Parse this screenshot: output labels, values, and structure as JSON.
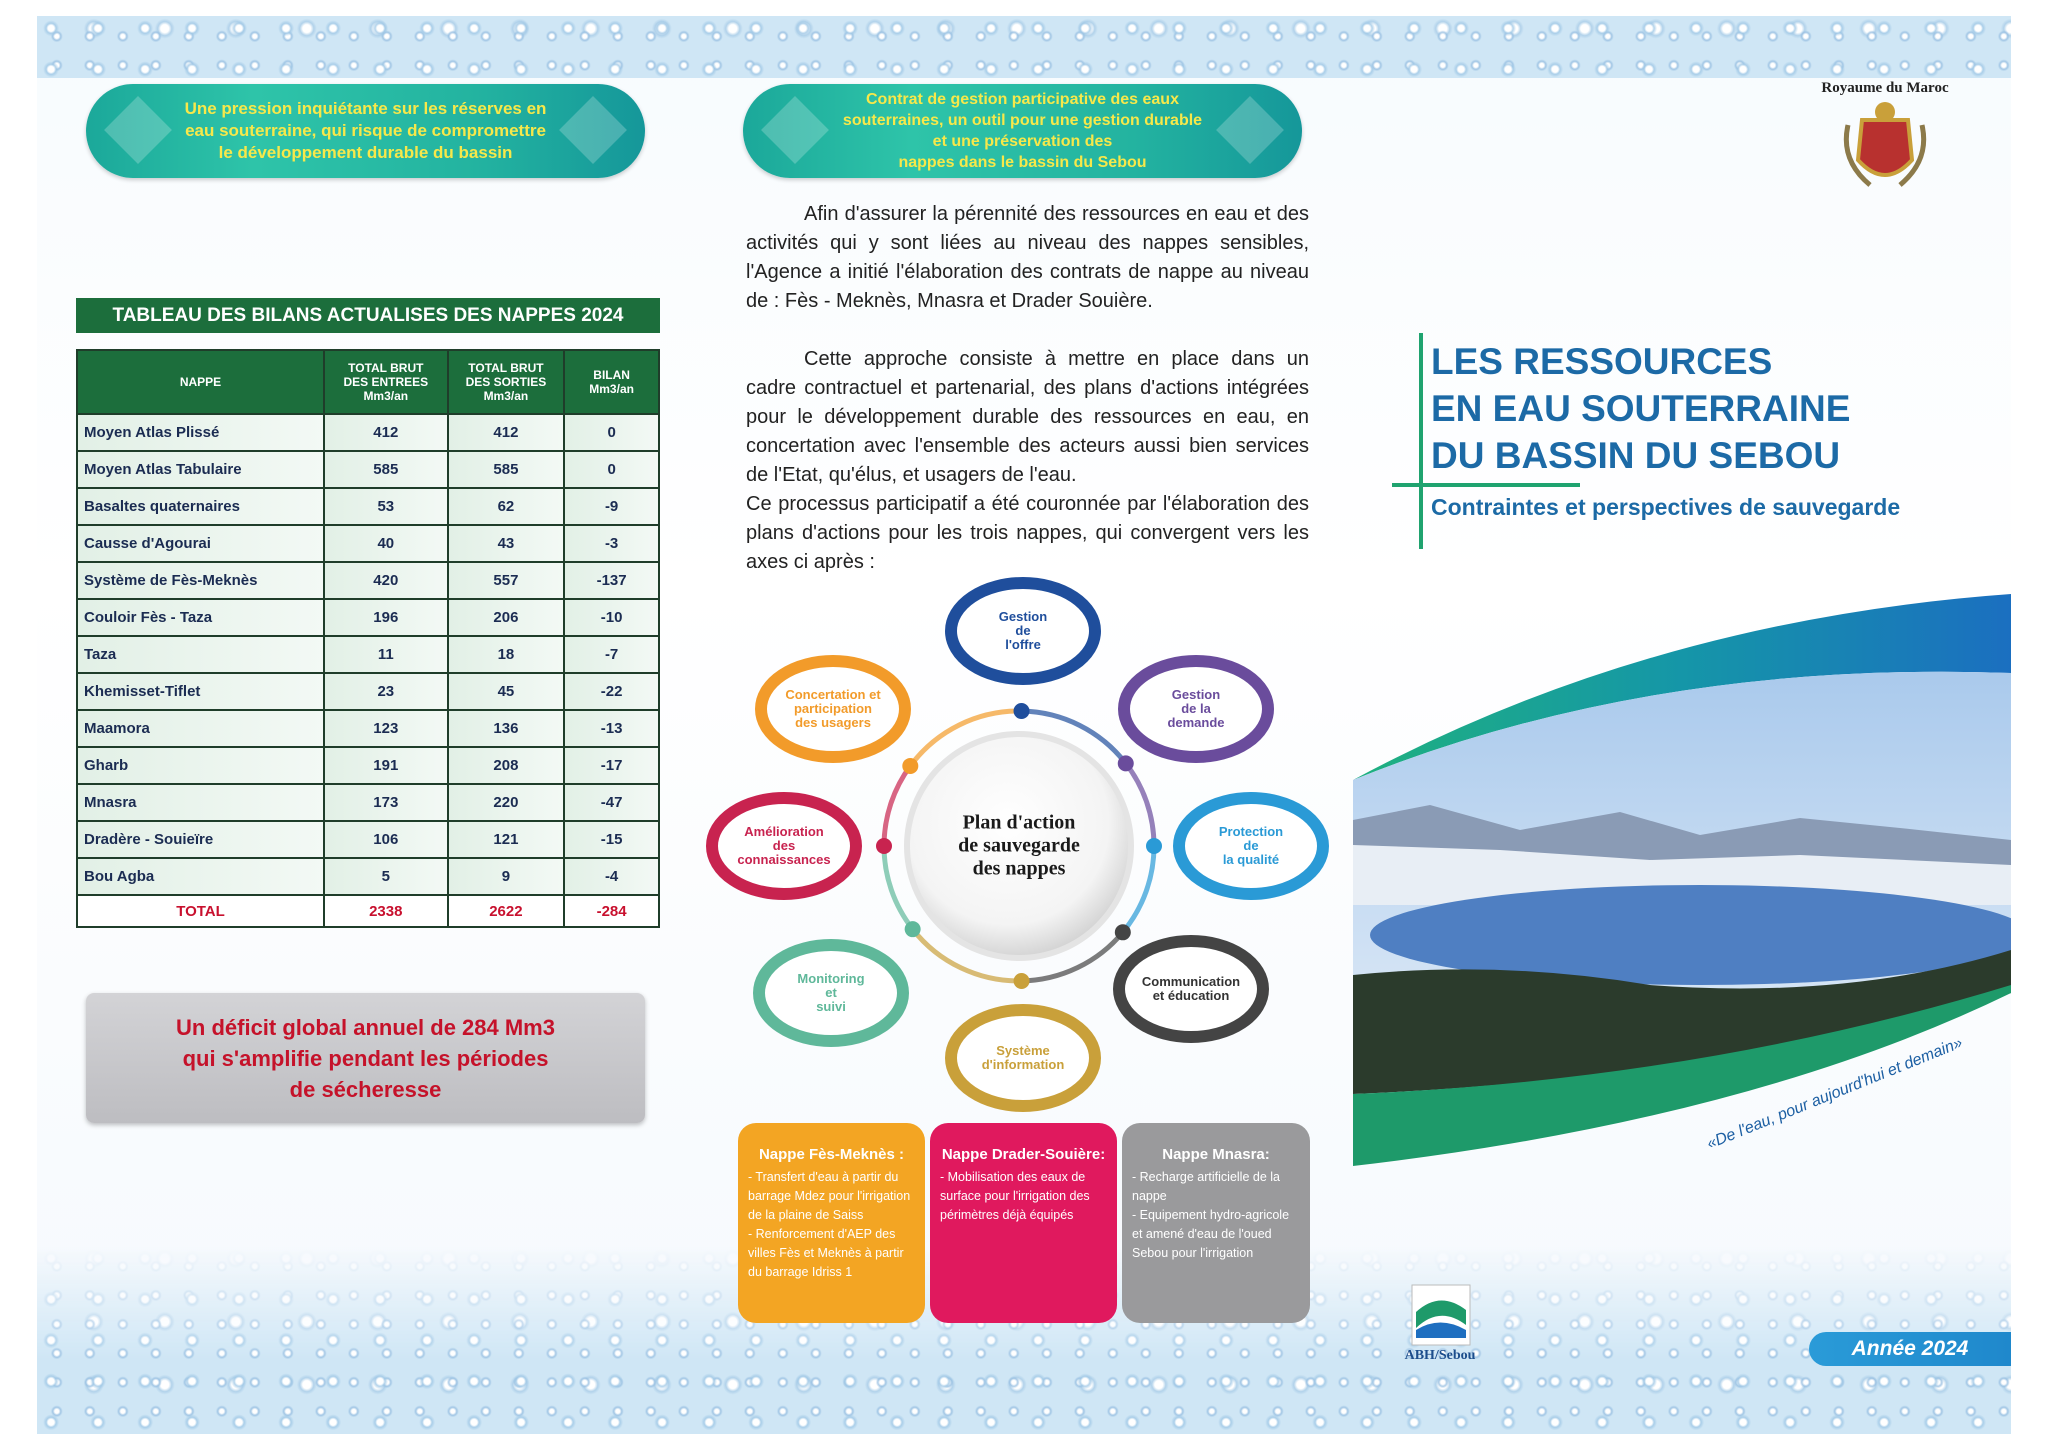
{
  "left_panel": {
    "banner": "Une pression inquiétante sur les réserves en\neau souterraine, qui risque de compromettre\nle développement durable du bassin",
    "table": {
      "title": "TABLEAU DES BILANS ACTUALISES DES NAPPES 2024",
      "headers": [
        "NAPPE",
        "TOTAL BRUT\nDES ENTREES\nMm3/an",
        "TOTAL BRUT\nDES SORTIES\nMm3/an",
        "BILAN\nMm3/an"
      ],
      "rows": [
        [
          "Moyen Atlas Plissé",
          412,
          412,
          0
        ],
        [
          "Moyen Atlas Tabulaire",
          585,
          585,
          0
        ],
        [
          "Basaltes quaternaires",
          53,
          62,
          -9
        ],
        [
          "Causse d'Agourai",
          40,
          43,
          -3
        ],
        [
          "Système de Fès-Meknès",
          420,
          557,
          -137
        ],
        [
          "Couloir Fès - Taza",
          196,
          206,
          -10
        ],
        [
          "Taza",
          11,
          18,
          -7
        ],
        [
          "Khemisset-Tiflet",
          23,
          45,
          -22
        ],
        [
          "Maamora",
          123,
          136,
          -13
        ],
        [
          "Gharb",
          191,
          208,
          -17
        ],
        [
          "Mnasra",
          173,
          220,
          -47
        ],
        [
          "Dradère - Souieïre",
          106,
          121,
          -15
        ],
        [
          "Bou Agba",
          5,
          9,
          -4
        ]
      ],
      "total": [
        "TOTAL",
        2338,
        2622,
        -284
      ]
    },
    "deficit": "Un déficit  global annuel de 284 Mm3\nqui s'amplifie pendant les périodes\nde sécheresse"
  },
  "middle_panel": {
    "banner": "Contrat de gestion participative des eaux\nsouterraines, un outil pour une gestion durable\net une préservation des\nnappes dans le bassin du Sebou",
    "paragraphs": [
      "Afin d'assurer la pérennité des ressources en eau et des activités qui y sont liées au niveau des nappes sensibles, l'Agence a initié l'élaboration des contrats de  nappe au niveau de : Fès - Meknès, Mnasra et Drader Souière.",
      "Cette approche consiste à mettre en place dans un cadre contractuel et partenarial, des plans d'actions intégrées pour le développement durable des ressources en eau, en concertation avec l'ensemble des acteurs aussi bien services de l'Etat, qu'élus, et usagers de l'eau.",
      "Ce processus participatif a été couronnée par l'élaboration des plans d'actions pour les trois nappes, qui convergent vers les axes ci après :"
    ],
    "diagram": {
      "center": "Plan d'action\nde sauvegarde\ndes nappes",
      "nodes": [
        "Gestion\nde\nl'offre",
        "Gestion\nde la\ndemande",
        "Protection\nde\nla qualité",
        "Communication\net éducation",
        "Système\nd'information",
        "Monitoring\net\nsuivi",
        "Amélioration\ndes\nconnaissances",
        "Concertation et\nparticipation\ndes usagers"
      ]
    },
    "nappes": [
      {
        "title": "Nappe Fès-Meknès :",
        "items": [
          "- Transfert  d'eau à partir du barrage Mdez pour l'irrigation de  la plaine de Saiss",
          "- Renforcement  d'AEP des villes Fès et Meknès  à partir du barrage Idriss 1"
        ]
      },
      {
        "title": "Nappe Drader-Souière:",
        "items": [
          "- Mobilisation des eaux de surface pour l'irrigation des périmètres déjà équipés"
        ]
      },
      {
        "title": "Nappe Mnasra:",
        "items": [
          "- Recharge artificielle de la nappe",
          "- Equipement hydro-agricole et amené d'eau de l'oued Sebou  pour l'irrigation"
        ]
      }
    ]
  },
  "right_panel": {
    "kingdom": "Royaume du Maroc",
    "title_lines": [
      "LES RESSOURCES",
      "EN EAU SOUTERRAINE",
      "DU BASSIN DU SEBOU"
    ],
    "subtitle": "Contraintes et perspectives de sauvegarde",
    "quote": "«De l'eau, pour aujourd'hui et demain»",
    "logo_label": "ABH/Sebou",
    "year": "Année 2024"
  }
}
